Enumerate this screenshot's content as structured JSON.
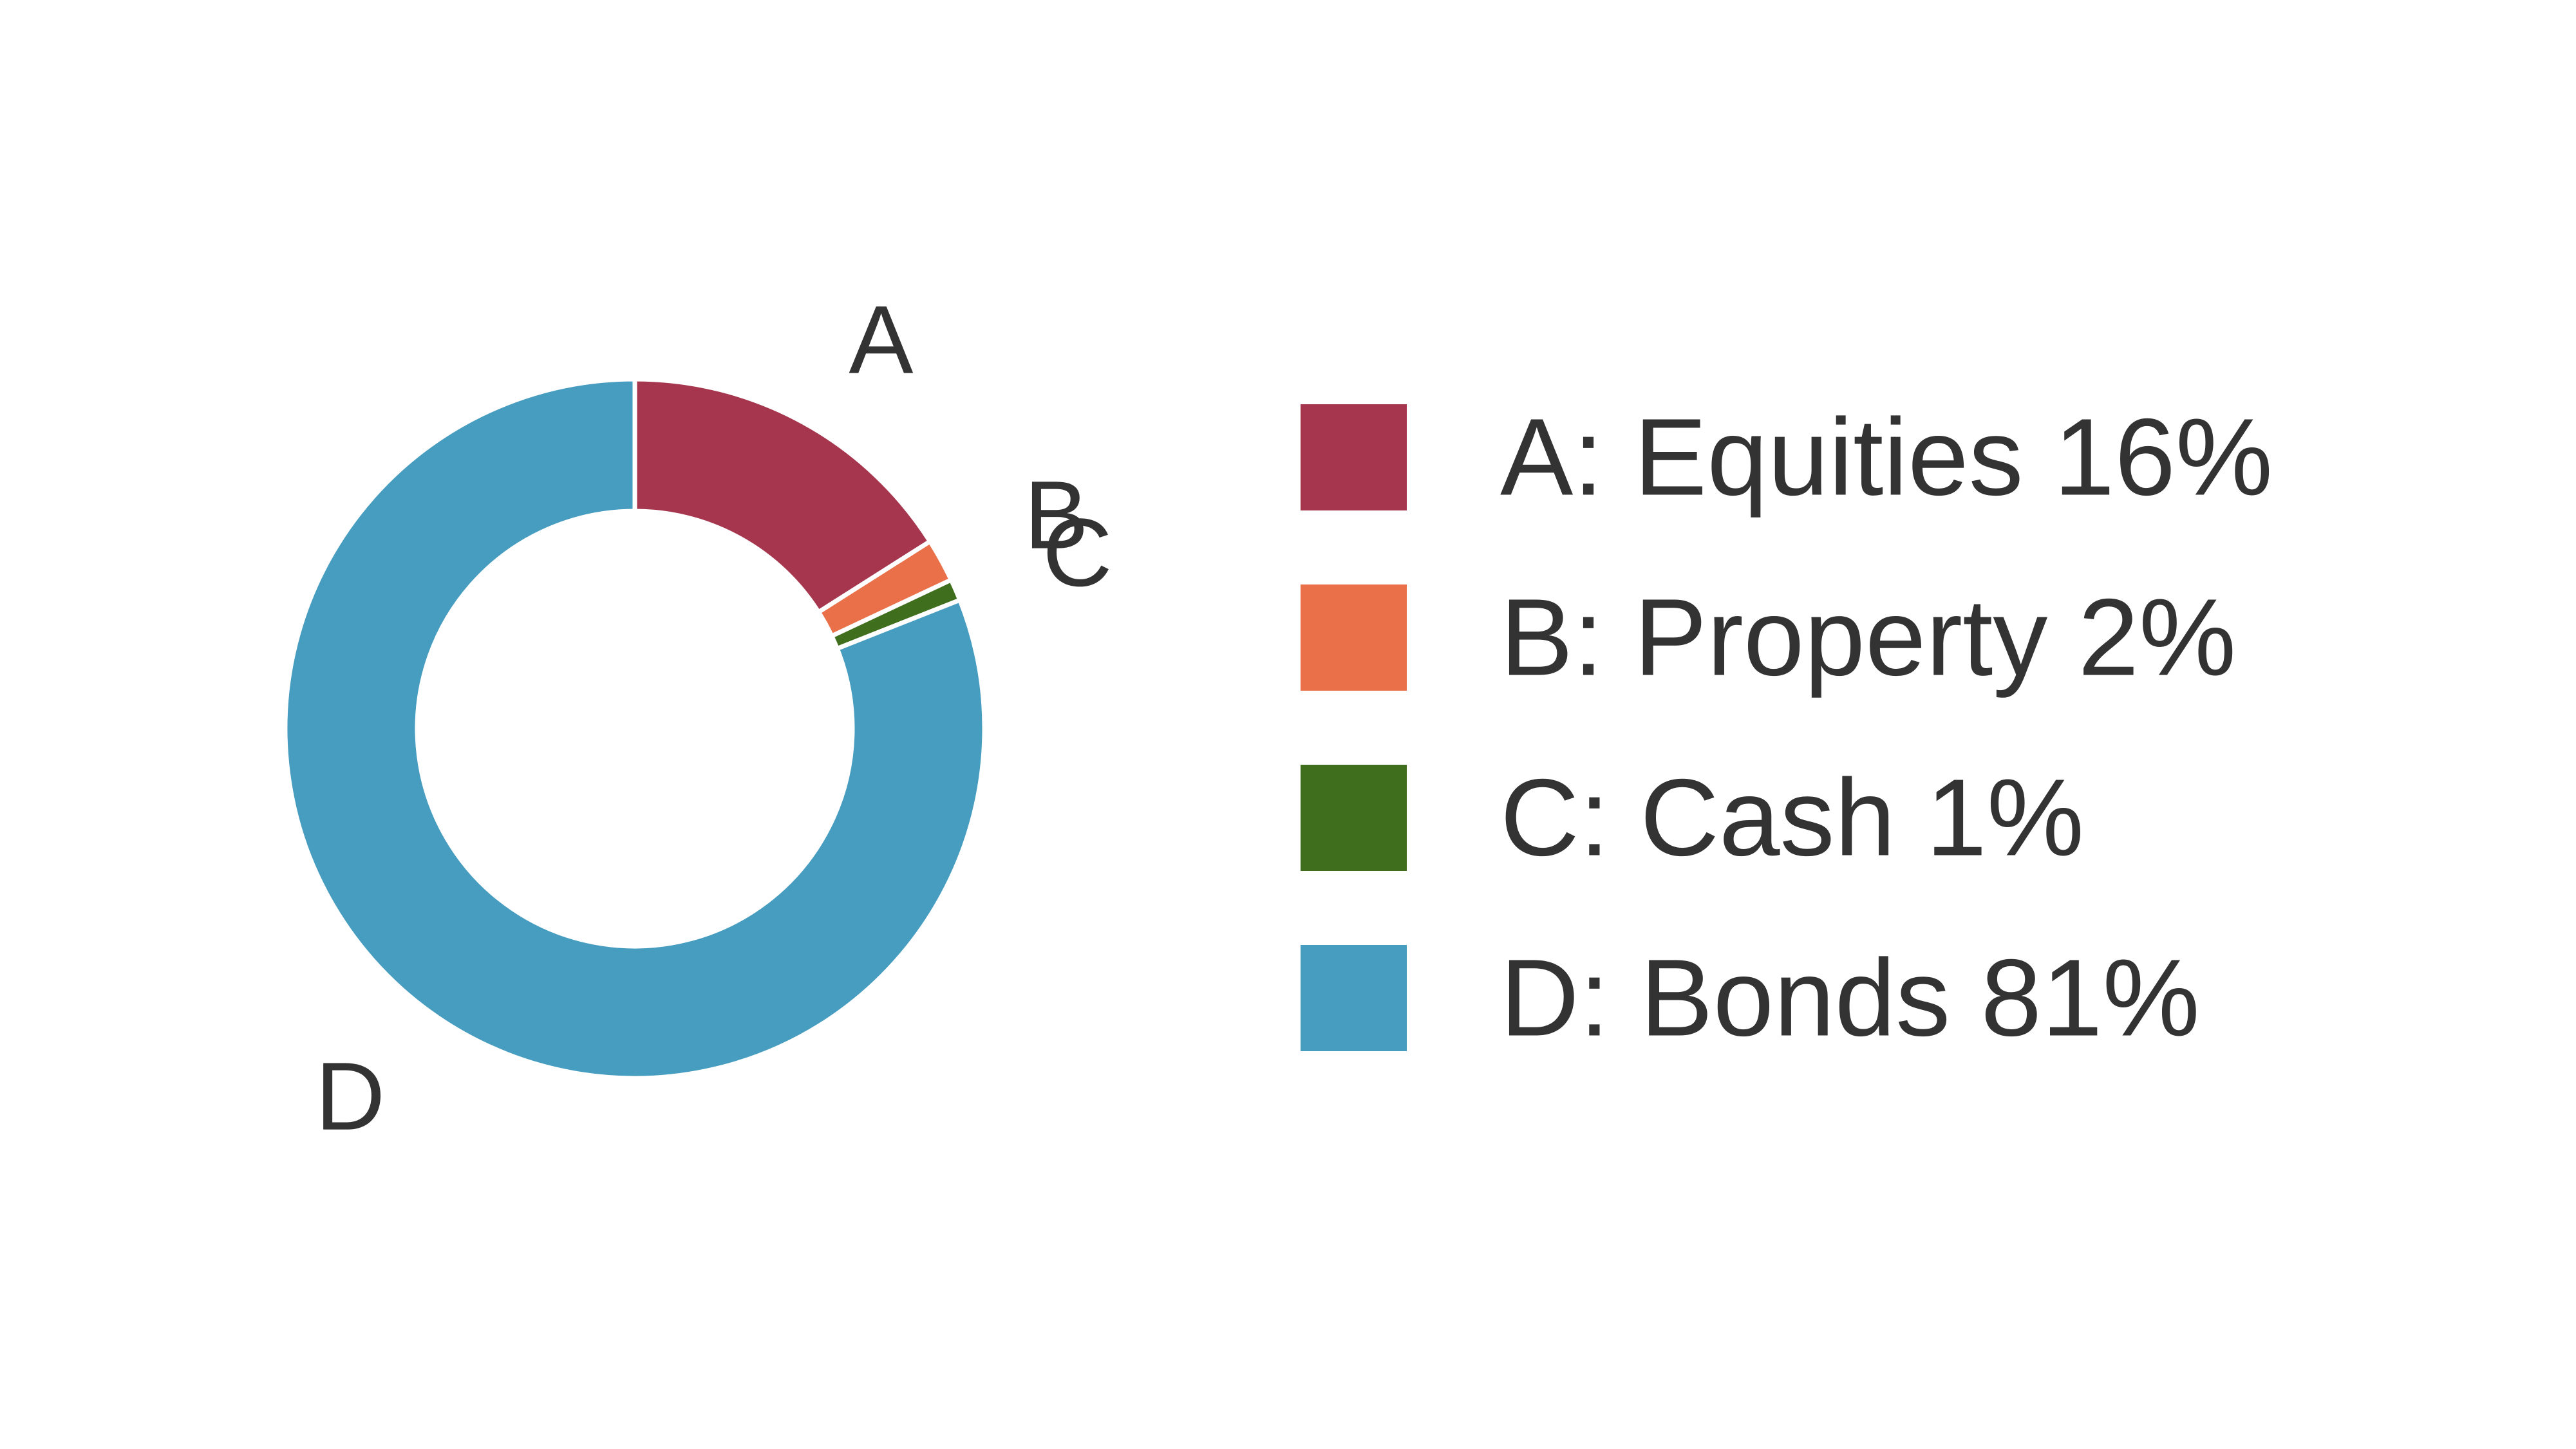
{
  "chart_data": {
    "type": "pie",
    "donut": true,
    "start_angle_deg": 0,
    "direction": "clockwise",
    "legend_position": "right",
    "slice_separator_color": "#ffffff",
    "slices": [
      {
        "key": "A",
        "name": "Equities",
        "value": 16,
        "color": "#a6364e",
        "legend": "A: Equities 16%"
      },
      {
        "key": "B",
        "name": "Property",
        "value": 2,
        "color": "#ea7049",
        "legend": "B: Property 2%"
      },
      {
        "key": "C",
        "name": "Cash",
        "value": 1,
        "color": "#3f6e1d",
        "legend": "C: Cash 1%"
      },
      {
        "key": "D",
        "name": "Bonds",
        "value": 81,
        "color": "#479dc0",
        "legend": "D: Bonds 81%"
      }
    ]
  }
}
